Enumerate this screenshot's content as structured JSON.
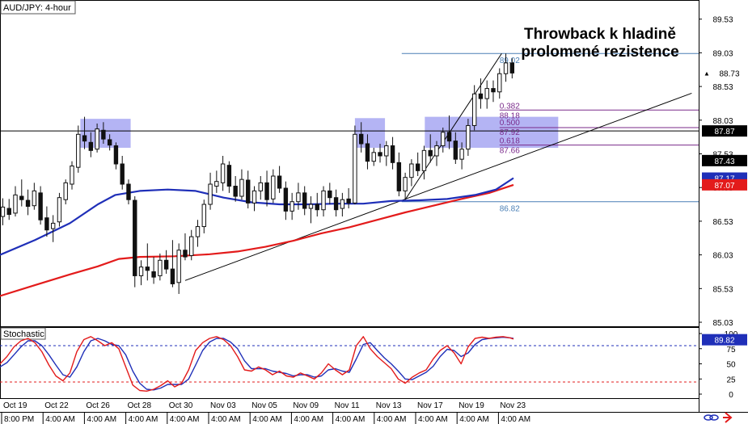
{
  "chart_data": {
    "type": "candlestick",
    "symbol_label": "AUD/JPY: 4-hour",
    "headline": [
      "Throwback k hladině",
      "prolomené rezistence"
    ],
    "price_ticks": [
      "89.53",
      "89.03",
      "88.53",
      "88.03",
      "87.53",
      "87.03",
      "86.53",
      "86.03",
      "85.53",
      "85.03"
    ],
    "date_ticks": [
      {
        "date": "Oct 19",
        "time": "8:00 PM"
      },
      {
        "date": "Oct 22",
        "time": "4:00 AM"
      },
      {
        "date": "Oct 26",
        "time": "4:00 AM"
      },
      {
        "date": "Oct 28",
        "time": "4:00 AM"
      },
      {
        "date": "Oct 30",
        "time": "4:00 AM"
      },
      {
        "date": "Nov 03",
        "time": "4:00 AM"
      },
      {
        "date": "Nov 05",
        "time": "4:00 AM"
      },
      {
        "date": "Nov 09",
        "time": "4:00 AM"
      },
      {
        "date": "Nov 11",
        "time": "4:00 AM"
      },
      {
        "date": "Nov 13",
        "time": "4:00 AM"
      },
      {
        "date": "Nov 17",
        "time": "4:00 AM"
      },
      {
        "date": "Nov 19",
        "time": "4:00 AM"
      },
      {
        "date": "Nov 23",
        "time": "4:00 AM"
      }
    ],
    "last_price": "88.73",
    "price_badges": [
      {
        "value": "88.73",
        "style": "last",
        "color": "#000000"
      },
      {
        "value": "87.87",
        "style": "line",
        "color": "#000000"
      },
      {
        "value": "87.43",
        "style": "line",
        "color": "#000000"
      },
      {
        "value": "87.17",
        "style": "ma",
        "color": "#1f2fb8"
      },
      {
        "value": "87.07",
        "style": "ma",
        "color": "#e31b1b"
      }
    ],
    "horizontal_lines": [
      {
        "price": 89.02,
        "label": "89.02",
        "color": "#4a7fb5"
      },
      {
        "price": 87.87,
        "label": "",
        "color": "#000000"
      },
      {
        "price": 86.82,
        "label": "86.82",
        "color": "#4a7fb5"
      }
    ],
    "fibonacci": [
      {
        "ratio": "0.382",
        "price": "88.18",
        "level": 88.18
      },
      {
        "ratio": "0.500",
        "price": "87.92",
        "level": 87.92
      },
      {
        "ratio": "0.618",
        "price": "87.66",
        "level": 87.66
      }
    ],
    "fib_color": "#7a2a8a",
    "zones": [
      {
        "x0": 0.115,
        "x1": 0.187,
        "y0": 87.62,
        "y1": 88.05
      },
      {
        "x0": 0.508,
        "x1": 0.551,
        "y0": 87.62,
        "y1": 88.06
      },
      {
        "x0": 0.608,
        "x1": 0.799,
        "y0": 87.62,
        "y1": 88.08
      }
    ],
    "trendlines": [
      {
        "x0": 0.265,
        "y0": 85.65,
        "x1": 0.99,
        "y1": 88.43
      },
      {
        "x0": 0.58,
        "y0": 86.85,
        "x1": 0.718,
        "y1": 89.02
      }
    ],
    "ma_fast": [
      [
        0,
        86.03
      ],
      [
        0.05,
        86.25
      ],
      [
        0.1,
        86.5
      ],
      [
        0.14,
        86.78
      ],
      [
        0.165,
        86.92
      ],
      [
        0.2,
        86.98
      ],
      [
        0.24,
        87.0
      ],
      [
        0.28,
        86.98
      ],
      [
        0.32,
        86.88
      ],
      [
        0.36,
        86.81
      ],
      [
        0.4,
        86.78
      ],
      [
        0.44,
        86.78
      ],
      [
        0.48,
        86.79
      ],
      [
        0.52,
        86.79
      ],
      [
        0.56,
        86.83
      ],
      [
        0.6,
        86.84
      ],
      [
        0.64,
        86.86
      ],
      [
        0.68,
        86.92
      ],
      [
        0.71,
        87.0
      ],
      [
        0.735,
        87.17
      ]
    ],
    "ma_slow": [
      [
        0,
        85.42
      ],
      [
        0.05,
        85.58
      ],
      [
        0.1,
        85.74
      ],
      [
        0.14,
        85.86
      ],
      [
        0.17,
        85.97
      ],
      [
        0.2,
        86.0
      ],
      [
        0.25,
        86.01
      ],
      [
        0.3,
        86.04
      ],
      [
        0.34,
        86.08
      ],
      [
        0.38,
        86.15
      ],
      [
        0.42,
        86.24
      ],
      [
        0.46,
        86.35
      ],
      [
        0.5,
        86.44
      ],
      [
        0.54,
        86.55
      ],
      [
        0.58,
        86.66
      ],
      [
        0.62,
        86.76
      ],
      [
        0.66,
        86.86
      ],
      [
        0.7,
        86.95
      ],
      [
        0.735,
        87.07
      ]
    ],
    "candles": [
      [
        0.004,
        86.6,
        86.87,
        86.47,
        86.74
      ],
      [
        0.013,
        86.72,
        86.86,
        86.55,
        86.63
      ],
      [
        0.022,
        86.65,
        87.05,
        86.6,
        86.92
      ],
      [
        0.031,
        86.9,
        87.15,
        86.75,
        86.85
      ],
      [
        0.04,
        86.84,
        87.0,
        86.62,
        86.75
      ],
      [
        0.049,
        86.76,
        87.1,
        86.7,
        86.98
      ],
      [
        0.058,
        86.95,
        87.05,
        86.48,
        86.55
      ],
      [
        0.067,
        86.58,
        86.75,
        86.3,
        86.4
      ],
      [
        0.076,
        86.42,
        86.62,
        86.22,
        86.5
      ],
      [
        0.085,
        86.52,
        86.95,
        86.45,
        86.88
      ],
      [
        0.094,
        86.85,
        87.15,
        86.78,
        87.1
      ],
      [
        0.103,
        87.08,
        87.42,
        87.0,
        87.35
      ],
      [
        0.112,
        87.33,
        87.95,
        87.25,
        87.82
      ],
      [
        0.121,
        87.8,
        88.08,
        87.6,
        87.72
      ],
      [
        0.13,
        87.7,
        87.85,
        87.48,
        87.58
      ],
      [
        0.139,
        87.6,
        87.98,
        87.55,
        87.9
      ],
      [
        0.148,
        87.88,
        88.0,
        87.68,
        87.75
      ],
      [
        0.157,
        87.74,
        87.82,
        87.58,
        87.66
      ],
      [
        0.166,
        87.65,
        87.7,
        87.3,
        87.38
      ],
      [
        0.175,
        87.38,
        87.5,
        87.0,
        87.08
      ],
      [
        0.184,
        87.08,
        87.15,
        86.78,
        86.85
      ],
      [
        0.193,
        86.84,
        86.9,
        85.55,
        85.72
      ],
      [
        0.202,
        85.72,
        85.95,
        85.58,
        85.85
      ],
      [
        0.211,
        85.85,
        86.2,
        85.65,
        85.8
      ],
      [
        0.22,
        85.78,
        86.0,
        85.6,
        85.7
      ],
      [
        0.229,
        85.72,
        86.05,
        85.65,
        85.95
      ],
      [
        0.238,
        85.95,
        86.1,
        85.75,
        85.82
      ],
      [
        0.247,
        85.82,
        86.25,
        85.55,
        85.6
      ],
      [
        0.256,
        85.62,
        86.2,
        85.45,
        86.1
      ],
      [
        0.265,
        86.1,
        86.35,
        85.95,
        86.0
      ],
      [
        0.274,
        86.02,
        86.4,
        85.95,
        86.3
      ],
      [
        0.283,
        86.3,
        86.55,
        86.15,
        86.45
      ],
      [
        0.292,
        86.45,
        86.85,
        86.35,
        86.78
      ],
      [
        0.301,
        86.78,
        87.25,
        86.7,
        87.08
      ],
      [
        0.31,
        87.05,
        87.28,
        86.95,
        87.12
      ],
      [
        0.319,
        87.1,
        87.5,
        86.98,
        87.38
      ],
      [
        0.328,
        87.36,
        87.42,
        86.95,
        87.05
      ],
      [
        0.337,
        87.05,
        87.2,
        86.82,
        86.9
      ],
      [
        0.346,
        86.9,
        87.3,
        86.85,
        87.15
      ],
      [
        0.355,
        87.14,
        87.28,
        86.72,
        86.8
      ],
      [
        0.364,
        86.8,
        87.05,
        86.68,
        86.98
      ],
      [
        0.373,
        86.98,
        87.2,
        86.85,
        87.1
      ],
      [
        0.382,
        87.1,
        87.28,
        86.75,
        86.85
      ],
      [
        0.391,
        86.86,
        87.3,
        86.8,
        87.2
      ],
      [
        0.4,
        87.2,
        87.35,
        86.95,
        87.02
      ],
      [
        0.409,
        87.02,
        87.12,
        86.55,
        86.68
      ],
      [
        0.418,
        86.68,
        86.95,
        86.55,
        86.82
      ],
      [
        0.427,
        86.82,
        87.1,
        86.7,
        86.95
      ],
      [
        0.436,
        86.95,
        87.05,
        86.62,
        86.72
      ],
      [
        0.445,
        86.72,
        86.9,
        86.5,
        86.78
      ],
      [
        0.454,
        86.78,
        86.95,
        86.6,
        86.7
      ],
      [
        0.463,
        86.7,
        87.05,
        86.6,
        86.98
      ],
      [
        0.472,
        86.98,
        87.1,
        86.78,
        86.88
      ],
      [
        0.481,
        86.88,
        87.0,
        86.6,
        86.7
      ],
      [
        0.49,
        86.72,
        86.95,
        86.6,
        86.85
      ],
      [
        0.499,
        86.86,
        87.02,
        86.72,
        86.8
      ],
      [
        0.508,
        86.8,
        87.95,
        86.78,
        87.82
      ],
      [
        0.517,
        87.82,
        88.0,
        87.55,
        87.68
      ],
      [
        0.526,
        87.68,
        87.82,
        87.3,
        87.42
      ],
      [
        0.535,
        87.42,
        87.62,
        87.35,
        87.55
      ],
      [
        0.544,
        87.55,
        87.68,
        87.4,
        87.5
      ],
      [
        0.553,
        87.5,
        87.72,
        87.35,
        87.65
      ],
      [
        0.562,
        87.65,
        87.78,
        87.3,
        87.4
      ],
      [
        0.571,
        87.4,
        87.55,
        86.9,
        86.98
      ],
      [
        0.58,
        86.98,
        87.25,
        86.85,
        87.18
      ],
      [
        0.589,
        87.18,
        87.45,
        87.05,
        87.38
      ],
      [
        0.598,
        87.38,
        87.55,
        87.2,
        87.28
      ],
      [
        0.607,
        87.28,
        87.65,
        87.15,
        87.58
      ],
      [
        0.616,
        87.58,
        87.82,
        87.4,
        87.5
      ],
      [
        0.625,
        87.5,
        87.72,
        87.35,
        87.65
      ],
      [
        0.634,
        87.65,
        87.92,
        87.55,
        87.85
      ],
      [
        0.643,
        87.85,
        88.1,
        87.6,
        87.72
      ],
      [
        0.652,
        87.72,
        87.85,
        87.38,
        87.45
      ],
      [
        0.661,
        87.45,
        87.7,
        87.3,
        87.6
      ],
      [
        0.67,
        87.6,
        88.05,
        87.5,
        87.95
      ],
      [
        0.679,
        87.95,
        88.55,
        87.88,
        88.42
      ],
      [
        0.688,
        88.42,
        88.65,
        88.2,
        88.35
      ],
      [
        0.697,
        88.35,
        88.62,
        88.2,
        88.5
      ],
      [
        0.706,
        88.5,
        88.62,
        88.3,
        88.45
      ],
      [
        0.715,
        88.45,
        88.8,
        88.35,
        88.72
      ],
      [
        0.724,
        88.72,
        89.02,
        88.6,
        88.88
      ],
      [
        0.733,
        88.88,
        88.95,
        88.65,
        88.73
      ]
    ]
  },
  "stochastic": {
    "label": "Stochastic",
    "last_value": "89.82",
    "scale_ticks": [
      "100",
      "75",
      "50",
      "25",
      "0"
    ],
    "upper_level": 80,
    "lower_level": 20,
    "k_line": [
      [
        0,
        50
      ],
      [
        0.01,
        62
      ],
      [
        0.02,
        78
      ],
      [
        0.03,
        88
      ],
      [
        0.04,
        92
      ],
      [
        0.05,
        85
      ],
      [
        0.06,
        70
      ],
      [
        0.07,
        48
      ],
      [
        0.08,
        30
      ],
      [
        0.09,
        22
      ],
      [
        0.1,
        35
      ],
      [
        0.11,
        70
      ],
      [
        0.12,
        90
      ],
      [
        0.13,
        95
      ],
      [
        0.14,
        88
      ],
      [
        0.15,
        80
      ],
      [
        0.16,
        85
      ],
      [
        0.17,
        75
      ],
      [
        0.18,
        45
      ],
      [
        0.19,
        15
      ],
      [
        0.2,
        6
      ],
      [
        0.21,
        5
      ],
      [
        0.22,
        8
      ],
      [
        0.23,
        14
      ],
      [
        0.24,
        22
      ],
      [
        0.25,
        12
      ],
      [
        0.26,
        18
      ],
      [
        0.27,
        40
      ],
      [
        0.28,
        72
      ],
      [
        0.29,
        85
      ],
      [
        0.3,
        92
      ],
      [
        0.31,
        95
      ],
      [
        0.32,
        90
      ],
      [
        0.33,
        80
      ],
      [
        0.34,
        62
      ],
      [
        0.35,
        40
      ],
      [
        0.36,
        38
      ],
      [
        0.37,
        45
      ],
      [
        0.38,
        40
      ],
      [
        0.39,
        32
      ],
      [
        0.4,
        38
      ],
      [
        0.41,
        30
      ],
      [
        0.42,
        28
      ],
      [
        0.43,
        35
      ],
      [
        0.44,
        30
      ],
      [
        0.45,
        25
      ],
      [
        0.46,
        35
      ],
      [
        0.47,
        50
      ],
      [
        0.48,
        40
      ],
      [
        0.49,
        32
      ],
      [
        0.5,
        40
      ],
      [
        0.51,
        80
      ],
      [
        0.52,
        95
      ],
      [
        0.53,
        75
      ],
      [
        0.54,
        62
      ],
      [
        0.55,
        52
      ],
      [
        0.56,
        42
      ],
      [
        0.57,
        25
      ],
      [
        0.58,
        18
      ],
      [
        0.59,
        28
      ],
      [
        0.6,
        35
      ],
      [
        0.61,
        40
      ],
      [
        0.62,
        58
      ],
      [
        0.63,
        72
      ],
      [
        0.64,
        80
      ],
      [
        0.65,
        68
      ],
      [
        0.66,
        50
      ],
      [
        0.67,
        78
      ],
      [
        0.68,
        92
      ],
      [
        0.69,
        94
      ],
      [
        0.7,
        92
      ],
      [
        0.71,
        94
      ],
      [
        0.72,
        95
      ],
      [
        0.73,
        93
      ],
      [
        0.735,
        91
      ]
    ],
    "d_line": [
      [
        0,
        45
      ],
      [
        0.01,
        52
      ],
      [
        0.02,
        65
      ],
      [
        0.03,
        78
      ],
      [
        0.04,
        88
      ],
      [
        0.05,
        88
      ],
      [
        0.06,
        80
      ],
      [
        0.07,
        65
      ],
      [
        0.08,
        48
      ],
      [
        0.09,
        32
      ],
      [
        0.1,
        28
      ],
      [
        0.11,
        45
      ],
      [
        0.12,
        70
      ],
      [
        0.13,
        88
      ],
      [
        0.14,
        92
      ],
      [
        0.15,
        88
      ],
      [
        0.16,
        82
      ],
      [
        0.17,
        80
      ],
      [
        0.18,
        65
      ],
      [
        0.19,
        38
      ],
      [
        0.2,
        18
      ],
      [
        0.21,
        8
      ],
      [
        0.22,
        7
      ],
      [
        0.23,
        10
      ],
      [
        0.24,
        16
      ],
      [
        0.25,
        16
      ],
      [
        0.26,
        16
      ],
      [
        0.27,
        25
      ],
      [
        0.28,
        48
      ],
      [
        0.29,
        72
      ],
      [
        0.3,
        86
      ],
      [
        0.31,
        92
      ],
      [
        0.32,
        92
      ],
      [
        0.33,
        86
      ],
      [
        0.34,
        75
      ],
      [
        0.35,
        55
      ],
      [
        0.36,
        42
      ],
      [
        0.37,
        42
      ],
      [
        0.38,
        42
      ],
      [
        0.39,
        38
      ],
      [
        0.4,
        36
      ],
      [
        0.41,
        34
      ],
      [
        0.42,
        30
      ],
      [
        0.43,
        32
      ],
      [
        0.44,
        32
      ],
      [
        0.45,
        28
      ],
      [
        0.46,
        30
      ],
      [
        0.47,
        40
      ],
      [
        0.48,
        42
      ],
      [
        0.49,
        38
      ],
      [
        0.5,
        36
      ],
      [
        0.51,
        58
      ],
      [
        0.52,
        82
      ],
      [
        0.53,
        85
      ],
      [
        0.54,
        72
      ],
      [
        0.55,
        60
      ],
      [
        0.56,
        50
      ],
      [
        0.57,
        38
      ],
      [
        0.58,
        25
      ],
      [
        0.59,
        24
      ],
      [
        0.6,
        30
      ],
      [
        0.61,
        36
      ],
      [
        0.62,
        46
      ],
      [
        0.63,
        62
      ],
      [
        0.64,
        74
      ],
      [
        0.65,
        72
      ],
      [
        0.66,
        62
      ],
      [
        0.67,
        68
      ],
      [
        0.68,
        82
      ],
      [
        0.69,
        90
      ],
      [
        0.7,
        92
      ],
      [
        0.71,
        93
      ],
      [
        0.72,
        94
      ],
      [
        0.73,
        93
      ],
      [
        0.735,
        92
      ]
    ],
    "k_color": "#e31b1b",
    "d_color": "#1f2fb8",
    "level_color": "#1f2fb8",
    "level_color_low": "#e31b1b"
  },
  "colors": {
    "ma_fast": "#1f2fb8",
    "ma_slow": "#e31b1b",
    "zone_fill": "#9b9bf0",
    "candle": "#111111"
  },
  "icons": [
    "link-icon",
    "arrow-icon"
  ]
}
